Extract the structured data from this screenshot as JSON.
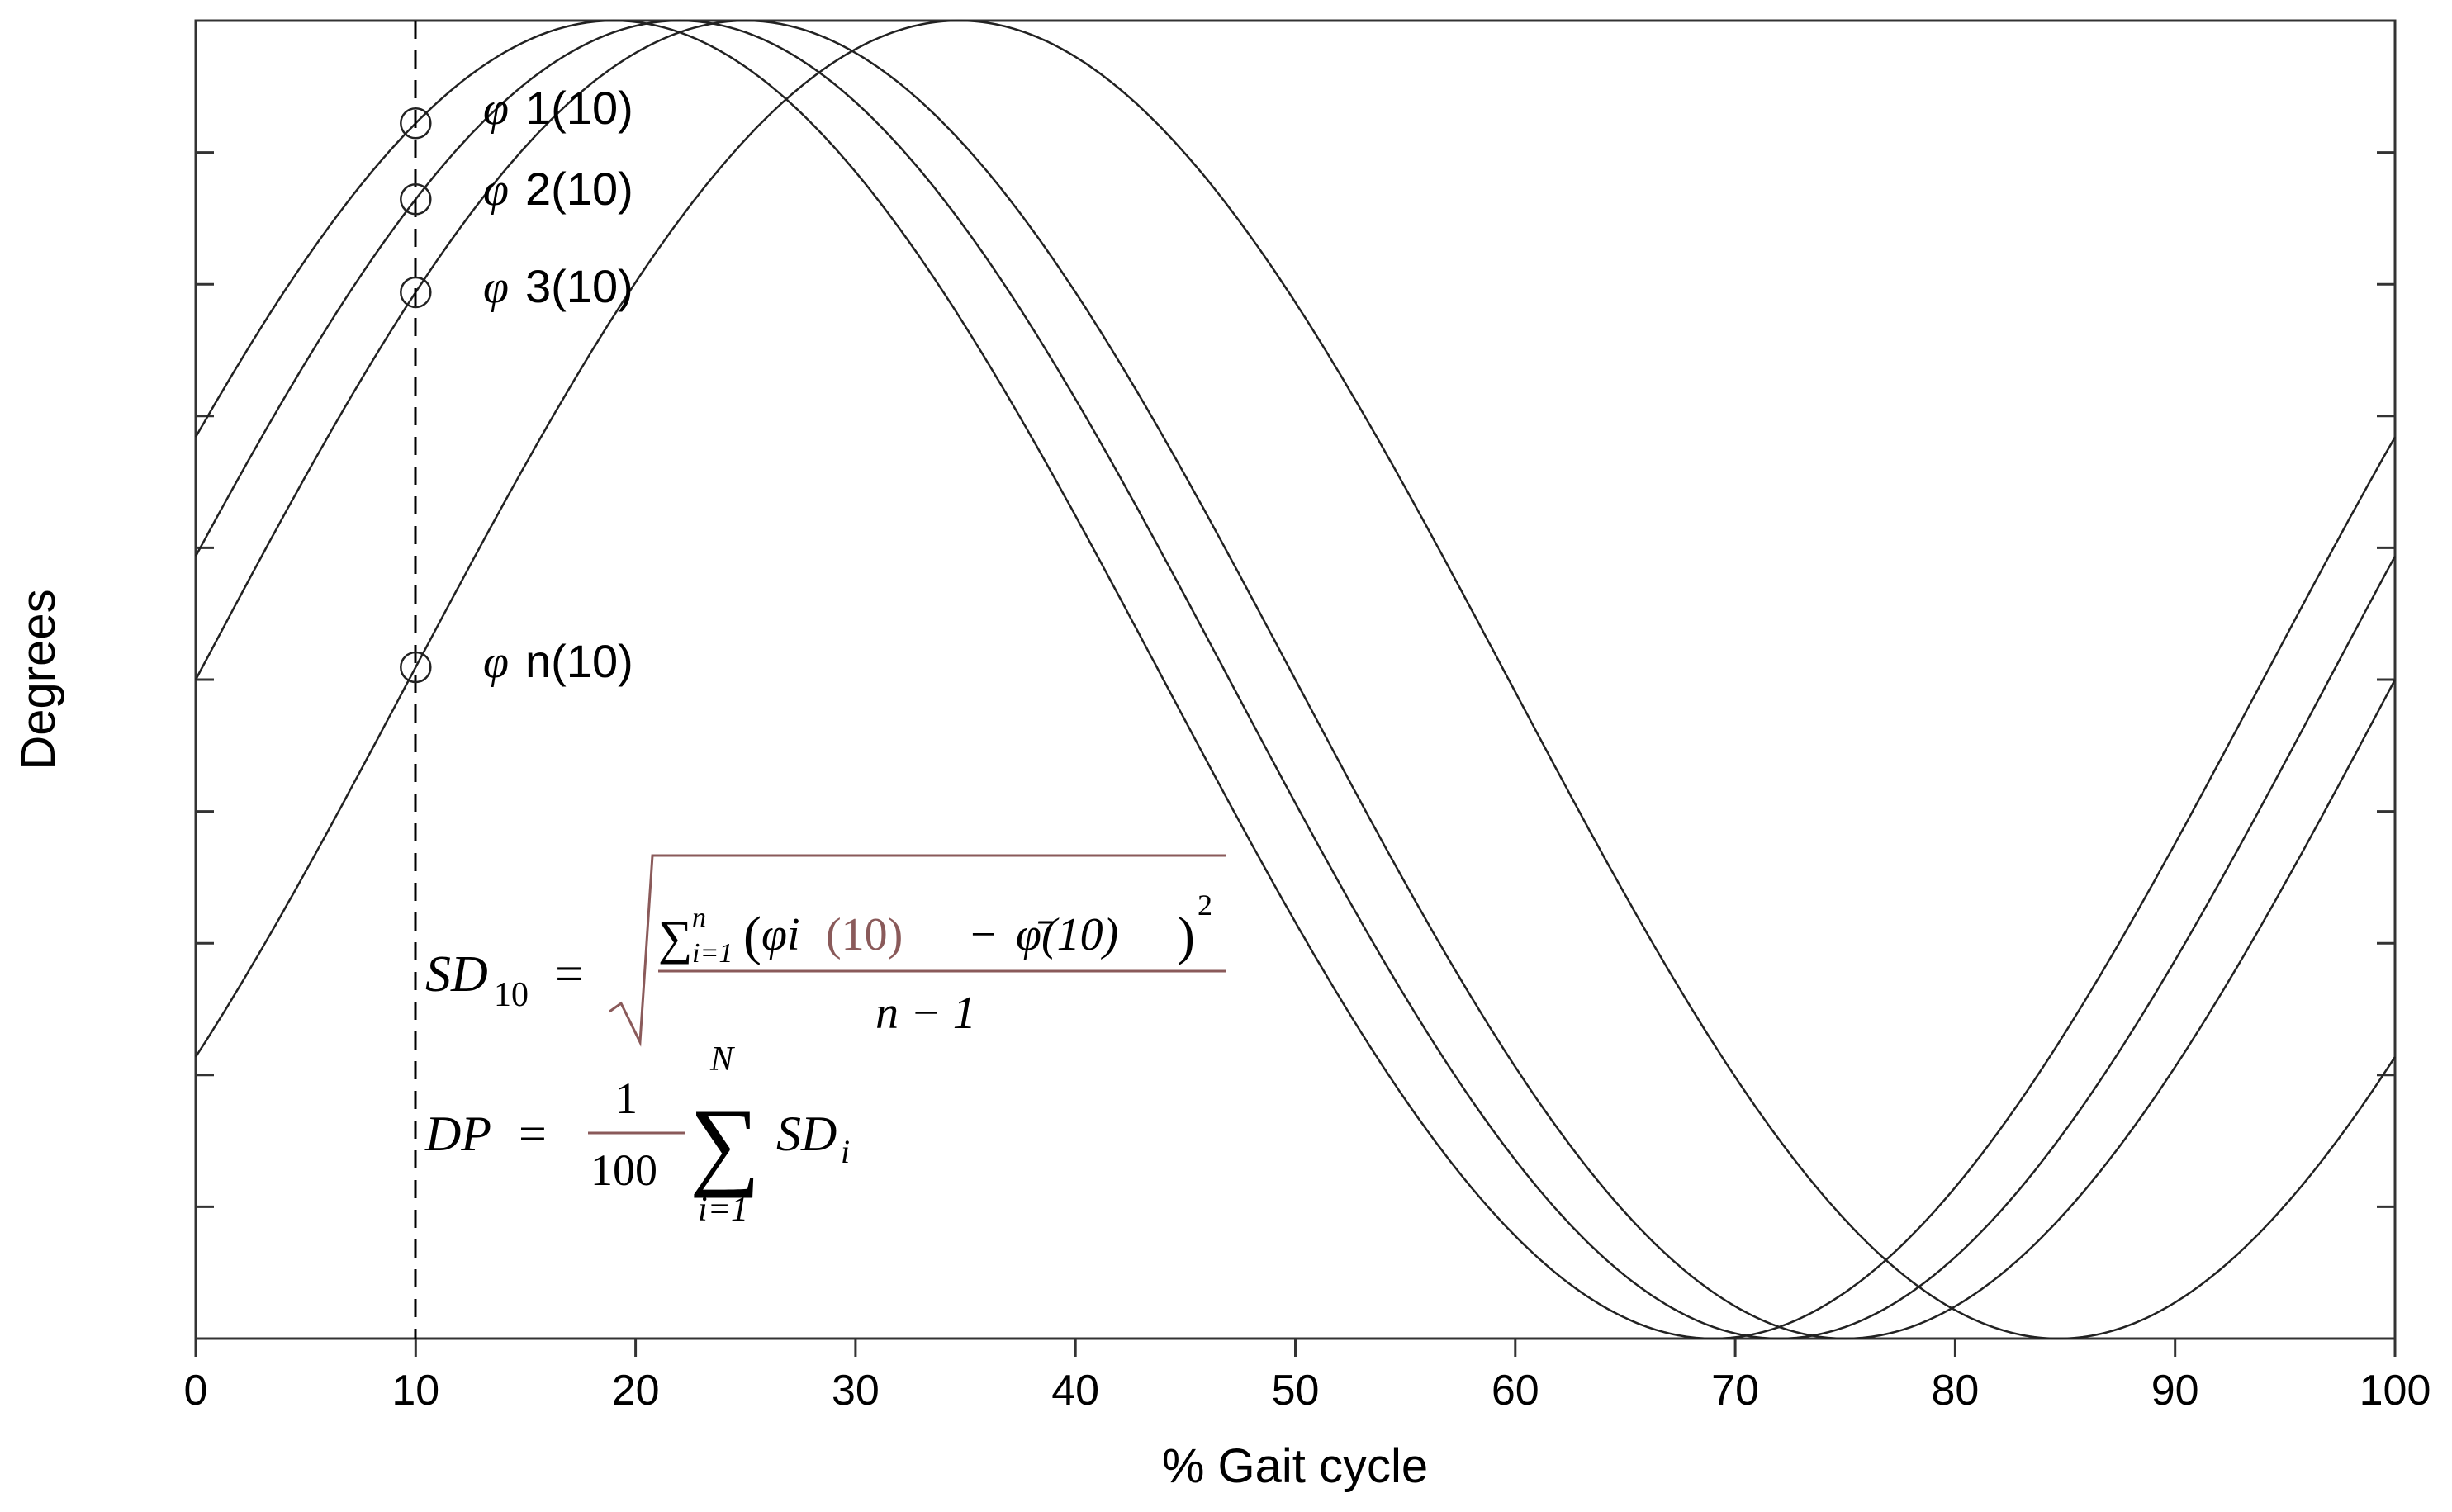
{
  "chart_data": {
    "type": "line",
    "title": "",
    "xlabel": "% Gait cycle",
    "ylabel": "Degrees",
    "xlim": [
      0,
      100
    ],
    "ylim": [
      -1,
      1
    ],
    "x_ticks": [
      0,
      10,
      20,
      30,
      40,
      50,
      60,
      70,
      80,
      90,
      100
    ],
    "y_tick_count": 11,
    "grid": false,
    "series": [
      {
        "name": "φ1",
        "phase_peak_x": 19,
        "amplitude": 1,
        "period": 100
      },
      {
        "name": "φ2",
        "phase_peak_x": 22,
        "amplitude": 1,
        "period": 100
      },
      {
        "name": "φ3",
        "phase_peak_x": 25,
        "amplitude": 1,
        "period": 100
      },
      {
        "name": "φn",
        "phase_peak_x": 34.7,
        "amplitude": 1,
        "period": 100
      }
    ],
    "marker_x": 10,
    "annotations": [
      {
        "name": "φ1",
        "text": "1(10)",
        "symbol": "φ"
      },
      {
        "name": "φ2",
        "text": "2(10)",
        "symbol": "φ"
      },
      {
        "name": "φ3",
        "text": "3(10)",
        "symbol": "φ"
      },
      {
        "name": "φn",
        "text": "n(10)",
        "symbol": "φ"
      }
    ],
    "formulas": {
      "sd": {
        "lhs": "SD",
        "lhs_sub": "10",
        "equals": "=",
        "sum": "∑",
        "sum_sub": "i=1",
        "sum_sup": "n",
        "num_open": "(",
        "num_phi": "φi",
        "num_10a": "(10)",
        "num_minus": "−",
        "num_phibar": "φ̄(10)",
        "num_close": ")",
        "num_sq": "2",
        "den": "n − 1"
      },
      "dp": {
        "lhs": "DP",
        "equals": "=",
        "frac_num": "1",
        "frac_den": "100",
        "sum": "∑",
        "sum_sup": "N",
        "sum_sub": "i=1",
        "term": "SD",
        "term_sub": "i"
      }
    }
  }
}
